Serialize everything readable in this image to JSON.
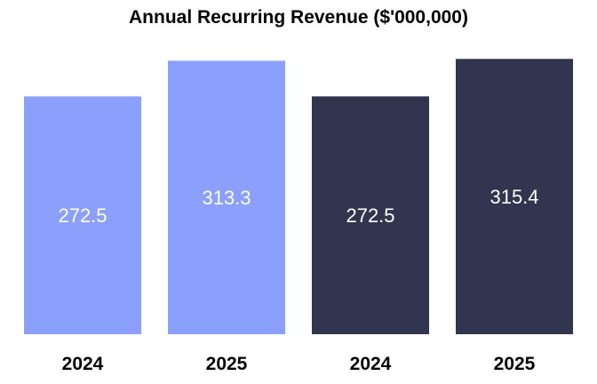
{
  "chart_data": {
    "type": "bar",
    "title": "Annual Recurring Revenue ($'000,000)",
    "categories": [
      "2024",
      "2025",
      "2024",
      "2025"
    ],
    "values": [
      272.5,
      313.3,
      272.5,
      315.4
    ],
    "value_labels": [
      "272.5",
      "313.3",
      "272.5",
      "315.4"
    ],
    "colors": [
      "#8b9ffd",
      "#8b9ffd",
      "#31354f",
      "#31354f"
    ],
    "label_color": "#ffffff",
    "xlabel": "",
    "ylabel": "",
    "ylim": [
      0,
      315.4
    ],
    "grid": false,
    "axes_visible": false
  }
}
